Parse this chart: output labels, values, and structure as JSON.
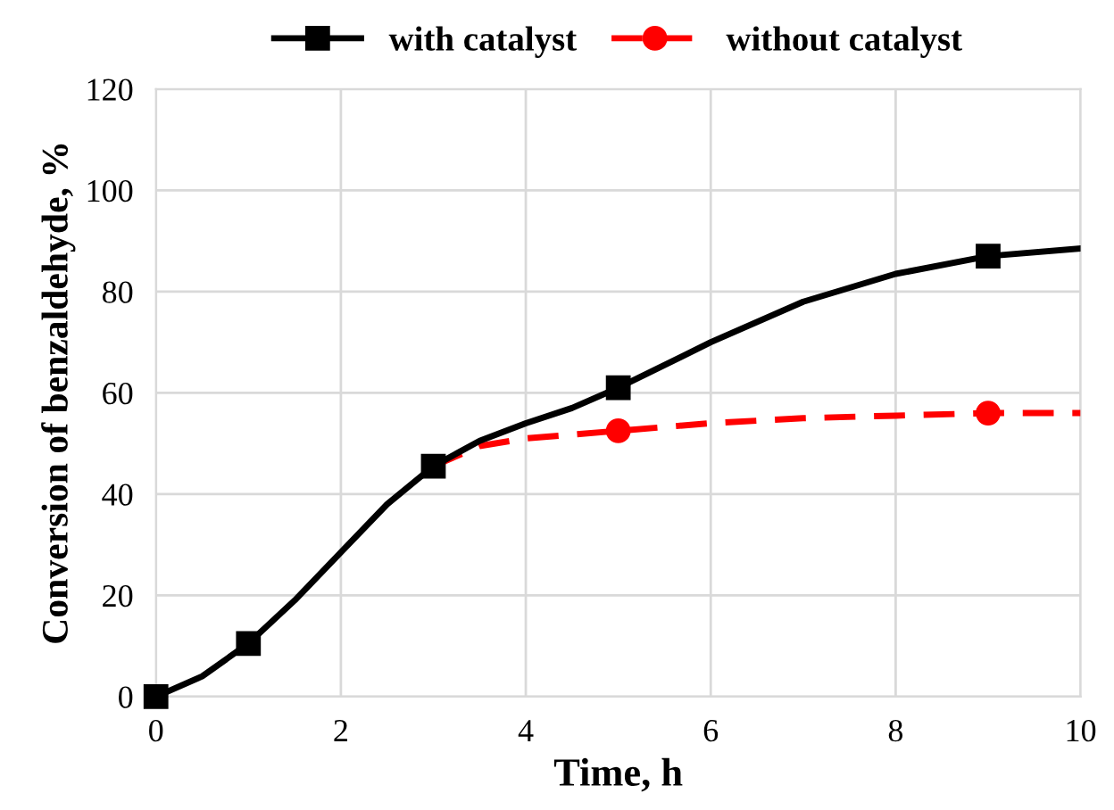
{
  "chart_data": {
    "type": "line",
    "xlabel": "Time, h",
    "ylabel": "Conversion of benzaldehyde, %",
    "xlim": [
      0,
      10
    ],
    "xticks": [
      0,
      2,
      4,
      6,
      8,
      10
    ],
    "ylim": [
      0,
      120
    ],
    "yticks": [
      0,
      20,
      40,
      60,
      80,
      100,
      120
    ],
    "grid": true,
    "legend": "top",
    "series": [
      {
        "name": "without catalyst",
        "color": "#ff0000",
        "x": [
          3,
          3.5,
          4,
          5,
          6,
          7,
          8,
          9,
          10
        ],
        "values": [
          45.5,
          49.5,
          51,
          52.5,
          54,
          55,
          55.5,
          56,
          56
        ],
        "marker": "none",
        "line_style": "dashed"
      },
      {
        "type": "scatter",
        "color": "#ff0000",
        "x": [
          5,
          9
        ],
        "values": [
          52.5,
          56
        ],
        "marker": "circle"
      },
      {
        "name": "with catalyst",
        "color": "#000000",
        "x": [
          0,
          0.5,
          1,
          1.5,
          2,
          2.5,
          3,
          3.5,
          4,
          4.5,
          5,
          6,
          7,
          8,
          9,
          10
        ],
        "values": [
          0,
          4,
          10.5,
          19,
          28.5,
          38,
          45.5,
          50.5,
          54,
          57,
          61,
          70,
          78,
          83.5,
          87,
          88.5
        ],
        "marker": "none",
        "line_style": "solid"
      },
      {
        "type": "scatter",
        "color": "#000000",
        "x": [
          0,
          1,
          3,
          5,
          9
        ],
        "values": [
          0,
          10.5,
          45.5,
          61,
          87
        ],
        "marker": "square"
      }
    ]
  }
}
